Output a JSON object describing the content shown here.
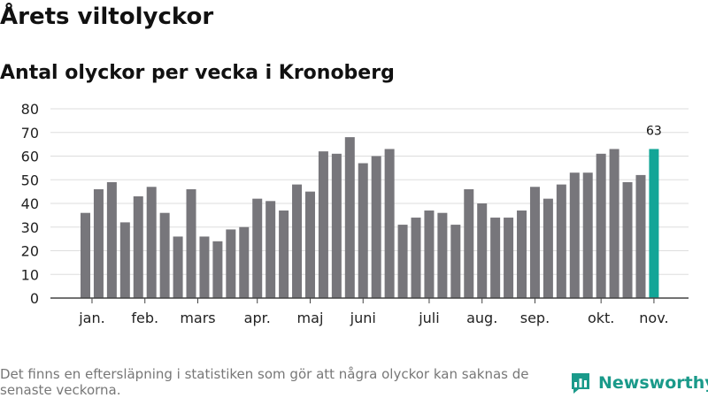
{
  "header": {
    "title": "Årets viltolyckor",
    "subtitle": "Antal olyckor per vecka i Kronoberg"
  },
  "footer": {
    "note": "Det finns en eftersläpning i statistiken som gör att några olyckor kan saknas de senaste veckorna.",
    "brand": "Newsworthy"
  },
  "colors": {
    "bar": "#77767b",
    "highlight": "#12a597",
    "brand": "#1a9a8a"
  },
  "chart_data": {
    "type": "bar",
    "title": "Antal olyckor per vecka i Kronoberg",
    "xlabel": "",
    "ylabel": "",
    "ylim": [
      0,
      80
    ],
    "yticks": [
      0,
      10,
      20,
      30,
      40,
      50,
      60,
      70,
      80
    ],
    "grid": true,
    "legend": "none",
    "values": [
      36,
      46,
      49,
      32,
      43,
      47,
      36,
      26,
      46,
      26,
      24,
      29,
      30,
      42,
      41,
      37,
      48,
      45,
      62,
      61,
      68,
      57,
      60,
      63,
      31,
      34,
      37,
      36,
      31,
      46,
      40,
      34,
      34,
      37,
      47,
      42,
      48,
      53,
      53,
      61,
      63,
      49,
      52,
      63
    ],
    "highlight_index": 43,
    "highlight_label": "63",
    "month_labels": [
      {
        "label": "jan.",
        "index": 0.5
      },
      {
        "label": "feb.",
        "index": 4.5
      },
      {
        "label": "mars",
        "index": 8.5
      },
      {
        "label": "apr.",
        "index": 13
      },
      {
        "label": "maj",
        "index": 17
      },
      {
        "label": "juni",
        "index": 21
      },
      {
        "label": "juli",
        "index": 26
      },
      {
        "label": "aug.",
        "index": 30
      },
      {
        "label": "sep.",
        "index": 34
      },
      {
        "label": "okt.",
        "index": 39
      },
      {
        "label": "nov.",
        "index": 43
      }
    ]
  }
}
